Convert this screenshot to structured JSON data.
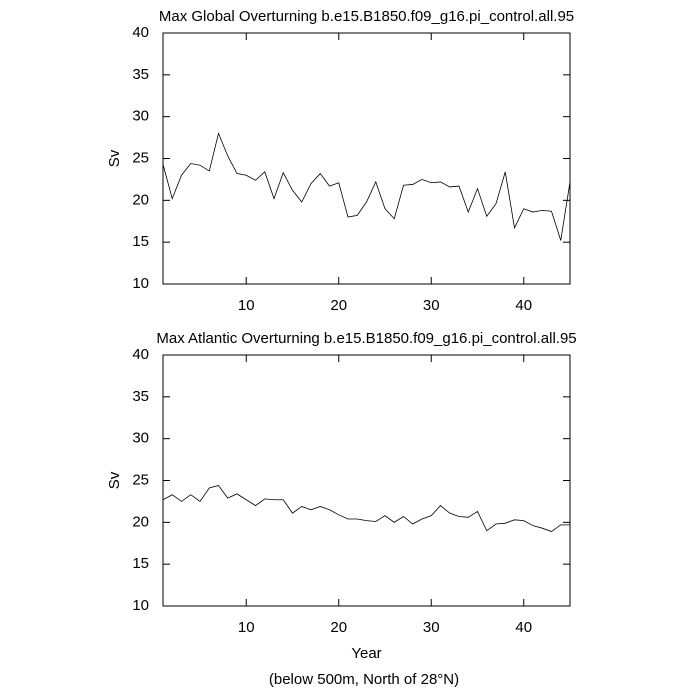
{
  "chart_data": [
    {
      "type": "line",
      "title": "Max Global Overturning b.e15.B1850.f09_g16.pi_control.all.95",
      "ylabel": "Sv",
      "x": [
        1,
        2,
        3,
        4,
        5,
        6,
        7,
        8,
        9,
        10,
        11,
        12,
        13,
        14,
        15,
        16,
        17,
        18,
        19,
        20,
        21,
        22,
        23,
        24,
        25,
        26,
        27,
        28,
        29,
        30,
        31,
        32,
        33,
        34,
        35,
        36,
        37,
        38,
        39,
        40,
        41,
        42,
        43,
        44,
        45
      ],
      "series": [
        {
          "color": "#000000",
          "values": [
            24.3,
            20.2,
            23.0,
            24.4,
            24.2,
            23.5,
            28.0,
            25.3,
            23.2,
            23.0,
            22.4,
            23.4,
            20.2,
            23.3,
            21.2,
            19.8,
            22.0,
            23.2,
            21.7,
            22.1,
            18.0,
            18.2,
            19.8,
            22.2,
            19.0,
            17.8,
            21.8,
            21.9,
            22.5,
            22.1,
            22.2,
            21.6,
            21.7,
            18.6,
            21.4,
            18.1,
            19.6,
            23.4,
            16.7,
            19.0,
            18.6,
            18.8,
            18.7,
            15.2,
            22.2
          ]
        }
      ],
      "xlim": [
        1,
        45
      ],
      "xticks": [
        10,
        20,
        30,
        40
      ],
      "ylim": [
        10,
        40
      ],
      "yticks": [
        10,
        15,
        20,
        25,
        30,
        35,
        40
      ]
    },
    {
      "type": "line",
      "title": "Max Atlantic Overturning b.e15.B1850.f09_g16.pi_control.all.95",
      "ylabel": "Sv",
      "xlabel": "Year",
      "x": [
        1,
        2,
        3,
        4,
        5,
        6,
        7,
        8,
        9,
        10,
        11,
        12,
        13,
        14,
        15,
        16,
        17,
        18,
        19,
        20,
        21,
        22,
        23,
        24,
        25,
        26,
        27,
        28,
        29,
        30,
        31,
        32,
        33,
        34,
        35,
        36,
        37,
        38,
        39,
        40,
        41,
        42,
        43,
        44,
        45
      ],
      "series": [
        {
          "color": "#000000",
          "values": [
            22.7,
            23.3,
            22.5,
            23.3,
            22.5,
            24.1,
            24.4,
            22.9,
            23.4,
            22.7,
            22.0,
            22.8,
            22.7,
            22.7,
            21.1,
            21.9,
            21.5,
            21.9,
            21.5,
            20.9,
            20.4,
            20.4,
            20.2,
            20.1,
            20.8,
            20.0,
            20.7,
            19.8,
            20.4,
            20.8,
            22.0,
            21.1,
            20.7,
            20.6,
            21.3,
            19.0,
            19.8,
            19.9,
            20.3,
            20.2,
            19.6,
            19.3,
            18.9,
            19.7,
            19.7
          ]
        }
      ],
      "xlim": [
        1,
        45
      ],
      "xticks": [
        10,
        20,
        30,
        40
      ],
      "ylim": [
        10,
        40
      ],
      "yticks": [
        10,
        15,
        20,
        25,
        30,
        35,
        40
      ]
    }
  ],
  "note": "(below 500m, North of 28°N)"
}
